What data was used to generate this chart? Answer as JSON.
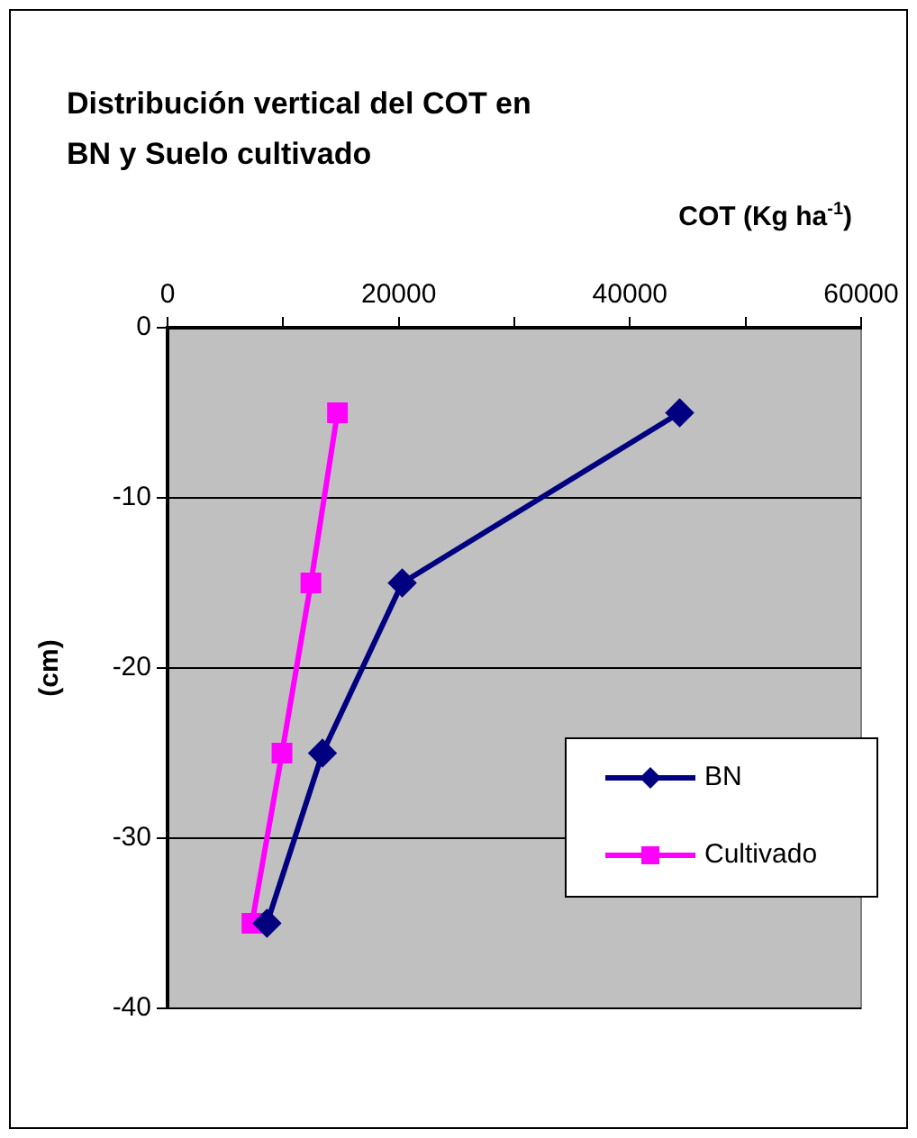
{
  "chart_data": {
    "type": "line",
    "title": "Distribución vertical del COT en\nBN y Suelo cultivado",
    "xlabel": "COT (Kg ha$^{-1}$)",
    "ylabel": "(cm)",
    "xlim": [
      0,
      60000
    ],
    "xticks": [
      0,
      {
        "value": 10000,
        "label": null
      },
      20000,
      {
        "value": 30000,
        "label": null
      },
      40000,
      {
        "value": 50000,
        "label": null
      },
      60000
    ],
    "ylim": [
      -40,
      0
    ],
    "yticks": [
      0,
      -10,
      -20,
      -30,
      -40
    ],
    "grid": "y",
    "legend": "right",
    "series": [
      {
        "name": "BN",
        "color": "#000080",
        "marker": "diamond",
        "x": [
          44300,
          20300,
          13400,
          8600
        ],
        "values": [
          -5,
          -15,
          -25,
          -35
        ]
      },
      {
        "name": "Cultivado",
        "color": "#ff00ff",
        "marker": "square",
        "x": [
          14700,
          12400,
          9900,
          7300
        ],
        "values": [
          -5,
          -15,
          -25,
          -35
        ]
      }
    ]
  }
}
